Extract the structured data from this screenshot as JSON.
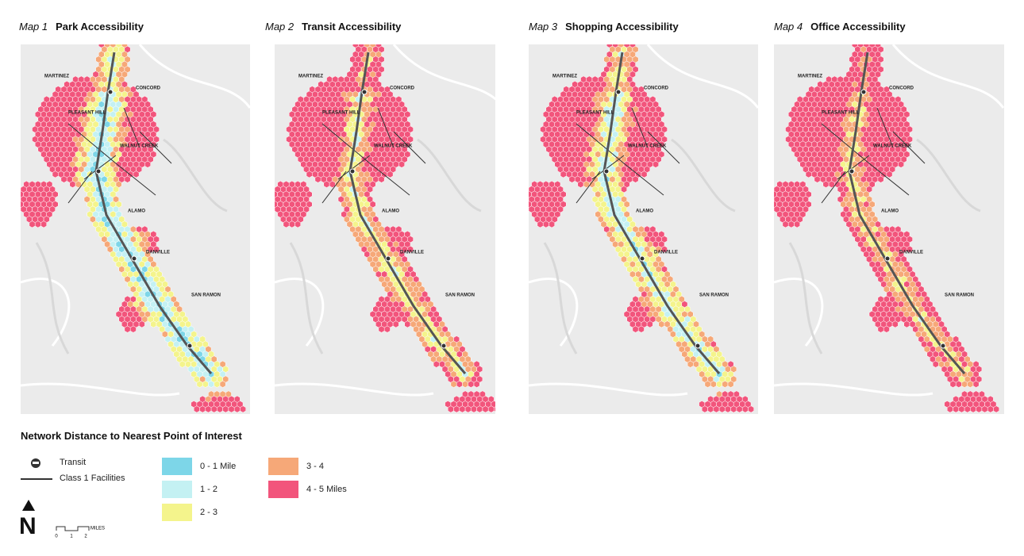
{
  "maps": [
    {
      "label": "Map 1",
      "title": "Park Accessibility",
      "bias": 0
    },
    {
      "label": "Map 2",
      "title": "Transit Accessibility",
      "bias": 1.4
    },
    {
      "label": "Map 3",
      "title": "Shopping Accessibility",
      "bias": 0.6
    },
    {
      "label": "Map 4",
      "title": "Office Accessibility",
      "bias": 1.8
    }
  ],
  "places": [
    "MARTINEZ",
    "CONCORD",
    "PLEASANT HILL",
    "WALNUT CREEK",
    "ALAMO",
    "DANVILLE",
    "SAN RAMON"
  ],
  "legend": {
    "title": "Network Distance to Nearest Point of Interest",
    "transit": "Transit",
    "class1": "Class 1 Facilities",
    "ranges": [
      {
        "label": "0 - 1 Mile",
        "color": "#7dd6e8"
      },
      {
        "label": "1 - 2",
        "color": "#c4f1f3"
      },
      {
        "label": "2 - 3",
        "color": "#f4f48c"
      },
      {
        "label": "3 - 4",
        "color": "#f6a878"
      },
      {
        "label": "4 - 5 Miles",
        "color": "#f2557c"
      }
    ],
    "north": "N",
    "scale": [
      "0",
      "1",
      "2"
    ],
    "scale_unit": "MILES"
  }
}
